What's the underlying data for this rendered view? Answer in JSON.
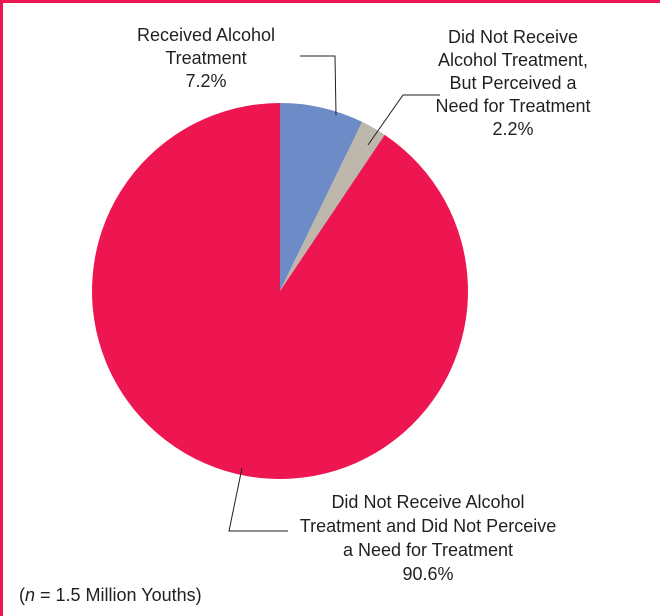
{
  "chart_data": {
    "type": "pie",
    "slices": [
      {
        "label_lines": [
          "Received Alcohol",
          "Treatment"
        ],
        "value": 7.2,
        "value_label": "7.2%",
        "color": "#6d8bc6"
      },
      {
        "label_lines": [
          "Did Not Receive",
          "Alcohol Treatment,",
          "But Perceived a",
          "Need for Treatment"
        ],
        "value": 2.2,
        "value_label": "2.2%",
        "color": "#bdb8ab"
      },
      {
        "label_lines": [
          "Did Not Receive Alcohol",
          "Treatment and Did Not Perceive",
          "a Need for Treatment"
        ],
        "value": 90.6,
        "value_label": "90.6%",
        "color": "#ed1651"
      }
    ],
    "note": {
      "prefix": "(",
      "n_symbol": "n",
      "text": " = 1.5 Million Youths)"
    }
  },
  "colors": {
    "frame": "#ed1651",
    "leader_line": "#231f20"
  }
}
